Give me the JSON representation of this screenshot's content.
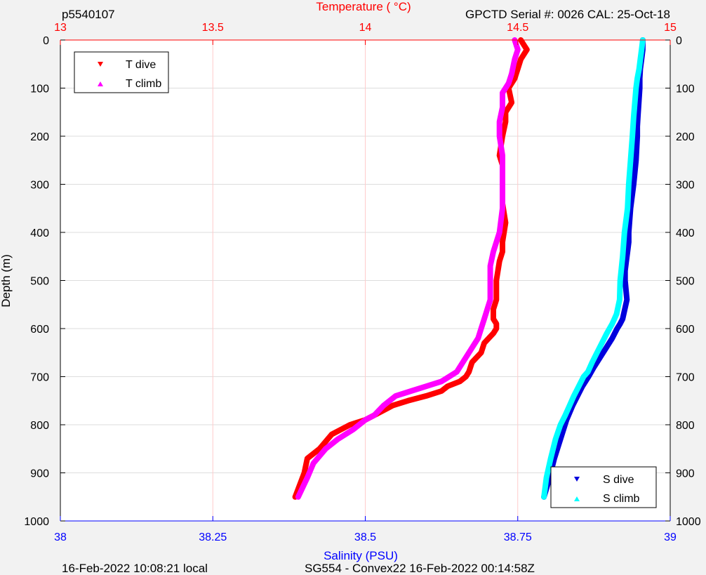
{
  "header": {
    "left": "p5540107",
    "right": "GPCTD Serial #: 0026 CAL: 25-Oct-18"
  },
  "footer": {
    "left": "16-Feb-2022 10:08:21 local",
    "center": "SG554 - Convex22 16-Feb-2022 00:14:58Z"
  },
  "colors": {
    "temperature_axis": "#ff0000",
    "salinity_axis": "#0000ff",
    "t_dive": "#ff0000",
    "t_climb": "#ff00ff",
    "s_dive": "#0000dd",
    "s_climb": "#00ffff",
    "grid_temperature": "#ffcccc",
    "grid_depth": "#dddddd"
  },
  "chart_data": {
    "type": "line",
    "top_axis": {
      "label": "Temperature (    °C)",
      "range": [
        13,
        15
      ],
      "ticks": [
        "13",
        "13.5",
        "14",
        "14.5",
        "15"
      ]
    },
    "bottom_axis": {
      "label": "Salinity (PSU)",
      "range": [
        38,
        39
      ],
      "ticks": [
        "38",
        "38.25",
        "38.5",
        "38.75",
        "39"
      ]
    },
    "y_axis": {
      "label": "Depth (m)",
      "range": [
        0,
        1000
      ],
      "reversed": true,
      "ticks": [
        "0",
        "100",
        "200",
        "300",
        "400",
        "500",
        "600",
        "700",
        "800",
        "900",
        "1000"
      ]
    },
    "grid": true,
    "legends": [
      {
        "placement": "top-left",
        "entries": [
          {
            "name": "T dive",
            "marker": "triangle-down",
            "series": "t_dive"
          },
          {
            "name": "T climb",
            "marker": "triangle-up",
            "series": "t_climb"
          }
        ]
      },
      {
        "placement": "bottom-right",
        "entries": [
          {
            "name": "S dive",
            "marker": "triangle-down",
            "series": "s_dive"
          },
          {
            "name": "S climb",
            "marker": "triangle-up",
            "series": "s_climb"
          }
        ]
      }
    ],
    "series": [
      {
        "name": "T dive",
        "axis": "temperature",
        "key": "t_dive",
        "x": [
          14.51,
          14.52,
          14.53,
          14.51,
          14.5,
          14.49,
          14.47,
          14.48,
          14.46,
          14.46,
          14.45,
          14.44,
          14.45,
          14.45,
          14.45,
          14.46,
          14.45,
          14.45,
          14.44,
          14.43,
          14.43,
          14.42,
          14.42,
          14.43,
          14.43,
          14.42,
          14.39,
          14.38,
          14.35,
          14.34,
          14.33,
          14.31,
          14.27,
          14.25,
          14.2,
          14.14,
          14.09,
          14.06,
          14.03,
          14.0,
          13.95,
          13.89,
          13.85,
          13.81,
          13.8,
          13.77
        ],
        "y": [
          0,
          10,
          20,
          40,
          60,
          80,
          100,
          130,
          150,
          170,
          200,
          240,
          260,
          300,
          340,
          380,
          420,
          440,
          460,
          500,
          540,
          560,
          580,
          590,
          600,
          610,
          630,
          650,
          670,
          690,
          700,
          710,
          720,
          730,
          740,
          750,
          760,
          770,
          780,
          790,
          800,
          820,
          850,
          870,
          900,
          950
        ]
      },
      {
        "name": "T climb",
        "axis": "temperature",
        "key": "t_climb",
        "x": [
          14.49,
          14.5,
          14.49,
          14.48,
          14.47,
          14.45,
          14.45,
          14.44,
          14.44,
          14.45,
          14.45,
          14.45,
          14.44,
          14.42,
          14.41,
          14.41,
          14.41,
          14.4,
          14.39,
          14.38,
          14.37,
          14.35,
          14.33,
          14.3,
          14.25,
          14.2,
          14.15,
          14.1,
          14.06,
          14.03,
          14.0,
          13.96,
          13.91,
          13.87,
          13.83,
          13.81,
          13.78
        ],
        "y": [
          0,
          20,
          40,
          70,
          90,
          110,
          140,
          170,
          200,
          240,
          300,
          350,
          400,
          440,
          470,
          500,
          540,
          560,
          580,
          600,
          620,
          640,
          660,
          690,
          710,
          720,
          730,
          740,
          760,
          780,
          790,
          810,
          830,
          850,
          880,
          910,
          950
        ]
      },
      {
        "name": "S dive",
        "axis": "salinity",
        "key": "s_dive",
        "x": [
          38.955,
          38.955,
          38.953,
          38.951,
          38.95,
          38.95,
          38.948,
          38.947,
          38.946,
          38.946,
          38.944,
          38.94,
          38.935,
          38.932,
          38.932,
          38.93,
          38.928,
          38.926,
          38.926,
          38.929,
          38.922,
          38.918,
          38.913,
          38.905,
          38.895,
          38.885,
          38.875,
          38.866,
          38.856,
          38.848,
          38.84,
          38.83,
          38.82,
          38.81,
          38.8,
          38.793
        ],
        "y": [
          0,
          20,
          40,
          60,
          80,
          100,
          140,
          160,
          180,
          200,
          250,
          300,
          350,
          400,
          420,
          440,
          460,
          480,
          500,
          540,
          580,
          590,
          600,
          620,
          640,
          660,
          680,
          700,
          720,
          740,
          760,
          790,
          830,
          870,
          920,
          950
        ]
      },
      {
        "name": "S climb",
        "axis": "salinity",
        "key": "s_climb",
        "x": [
          38.955,
          38.953,
          38.951,
          38.949,
          38.946,
          38.944,
          38.942,
          38.94,
          38.938,
          38.935,
          38.932,
          38.93,
          38.925,
          38.922,
          38.918,
          38.917,
          38.912,
          38.905,
          38.896,
          38.888,
          38.88,
          38.872,
          38.865,
          38.858,
          38.85,
          38.842,
          38.835,
          38.828,
          38.82,
          38.812,
          38.804,
          38.797,
          38.793
        ],
        "y": [
          0,
          20,
          40,
          60,
          80,
          100,
          130,
          160,
          200,
          250,
          300,
          350,
          400,
          450,
          500,
          540,
          570,
          590,
          610,
          630,
          650,
          670,
          690,
          700,
          720,
          740,
          760,
          780,
          800,
          830,
          870,
          910,
          950
        ]
      }
    ]
  }
}
